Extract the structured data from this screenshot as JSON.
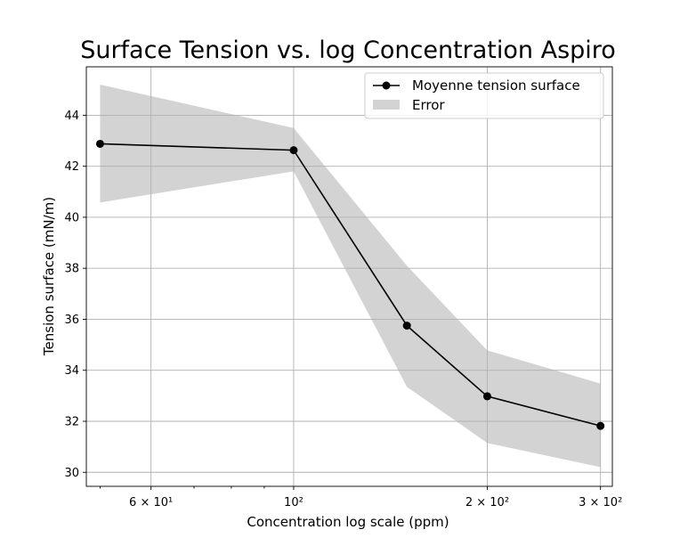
{
  "chart_data": {
    "type": "line",
    "title": "Surface Tension vs. log Concentration Aspiro",
    "xlabel": "Concentration log scale (ppm)",
    "ylabel": "Tension surface (mN/m)",
    "x_scale": "log",
    "xlim": [
      47.6,
      313
    ],
    "ylim": [
      29.45,
      45.9
    ],
    "grid": true,
    "legend_position": "top-right",
    "x_ticks": [
      {
        "value": 60,
        "label": "6 × 10¹"
      },
      {
        "value": 100,
        "label": "10²"
      },
      {
        "value": 200,
        "label": "2 × 10²"
      },
      {
        "value": 300,
        "label": "3 × 10²"
      }
    ],
    "x_minor_ticks": [
      50,
      70,
      80,
      90
    ],
    "y_ticks": [
      30,
      32,
      34,
      36,
      38,
      40,
      42,
      44
    ],
    "series": [
      {
        "name": "Moyenne tension surface",
        "color": "#000000",
        "marker": "circle",
        "x": [
          50,
          100,
          150,
          200,
          300
        ],
        "y": [
          42.88,
          42.63,
          35.75,
          32.98,
          31.82
        ]
      }
    ],
    "error_band": {
      "name": "Error",
      "color": "#d3d3d3",
      "x": [
        50,
        100,
        150,
        200,
        300
      ],
      "lower": [
        40.58,
        41.8,
        33.35,
        31.15,
        30.2
      ],
      "upper": [
        45.2,
        43.5,
        38.1,
        34.78,
        33.48
      ]
    }
  }
}
